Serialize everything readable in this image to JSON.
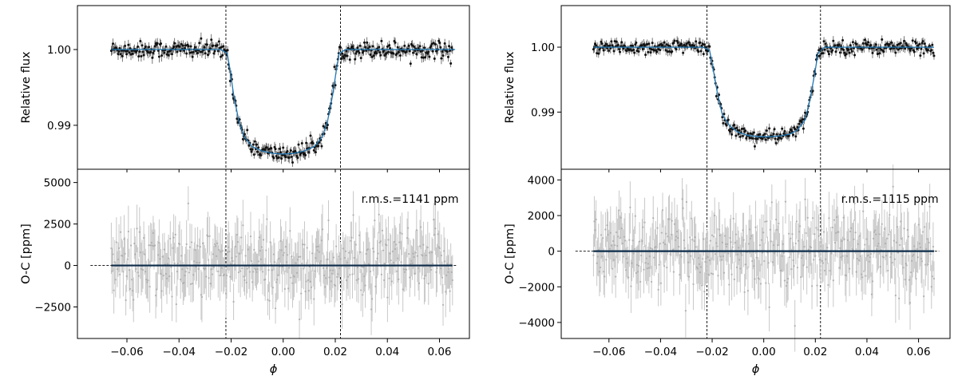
{
  "chart_data": [
    {
      "type": "scatter",
      "panel": "left",
      "top": {
        "ylabel": "Relative flux",
        "ylim": [
          0.9842,
          1.0058
        ],
        "yticks": [
          "0.99",
          "1.00"
        ],
        "model": {
          "x": [
            -0.066,
            -0.024,
            -0.0215,
            -0.0205,
            -0.019,
            -0.017,
            -0.015,
            -0.012,
            -0.008,
            -0.004,
            0.0,
            0.004,
            0.008,
            0.012,
            0.015,
            0.017,
            0.019,
            0.0205,
            0.0215,
            0.024,
            0.066
          ],
          "y": [
            1.0,
            1.0,
            0.9995,
            0.9975,
            0.994,
            0.9905,
            0.9885,
            0.9872,
            0.9866,
            0.9863,
            0.9862,
            0.9863,
            0.9866,
            0.9872,
            0.9885,
            0.9905,
            0.994,
            0.9975,
            0.9995,
            1.0,
            1.0
          ]
        },
        "depth_points": [
          {
            "x": -0.015,
            "y": 0.9868
          },
          {
            "x": -0.01,
            "y": 0.9862
          },
          {
            "x": -0.005,
            "y": 0.986
          },
          {
            "x": 0.0,
            "y": 0.9858
          },
          {
            "x": 0.005,
            "y": 0.9861
          },
          {
            "x": 0.01,
            "y": 0.9864
          },
          {
            "x": 0.015,
            "y": 0.9876
          }
        ]
      },
      "bottom": {
        "ylabel": "O-C [ppm]",
        "ylim": [
          -4400,
          5800
        ],
        "yticks": [
          "−2500",
          "0",
          "2500",
          "5000"
        ],
        "annotation": "r.m.s.=1141 ppm",
        "rms": 1141
      },
      "xlabel": "ϕ",
      "xlim": [
        -0.079,
        0.0715
      ],
      "xticks": [
        "−0.06",
        "−0.04",
        "−0.02",
        "0.00",
        "0.02",
        "0.04",
        "0.06"
      ],
      "xtick_values": [
        -0.06,
        -0.04,
        -0.02,
        0.0,
        0.02,
        0.04,
        0.06
      ],
      "ytick_values_top": [
        0.99,
        1.0
      ],
      "ytick_values_bottom": [
        -2500,
        0,
        2500,
        5000
      ],
      "ingress": -0.022,
      "egress": 0.022,
      "data_xrange": [
        -0.066,
        0.065
      ],
      "dashed_baseline_xrange": [
        -0.074,
        0.067
      ],
      "n_points": 400
    },
    {
      "type": "scatter",
      "panel": "right",
      "top": {
        "ylabel": "Relative flux",
        "ylim": [
          0.9812,
          1.0064
        ],
        "yticks": [
          "0.99",
          "1.00"
        ],
        "model": {
          "x": [
            -0.066,
            -0.0235,
            -0.021,
            -0.02,
            -0.018,
            -0.016,
            -0.013,
            -0.01,
            -0.006,
            -0.002,
            0.002,
            0.006,
            0.01,
            0.013,
            0.016,
            0.018,
            0.02,
            0.021,
            0.0235,
            0.066
          ],
          "y": [
            1.0,
            1.0,
            0.9995,
            0.9975,
            0.993,
            0.9895,
            0.9878,
            0.9869,
            0.9864,
            0.9862,
            0.9862,
            0.9863,
            0.9866,
            0.9872,
            0.9888,
            0.992,
            0.9965,
            0.999,
            1.0,
            1.0
          ]
        },
        "depth_points": [
          {
            "x": -0.015,
            "y": 0.9866
          },
          {
            "x": -0.01,
            "y": 0.9861
          },
          {
            "x": -0.005,
            "y": 0.9859
          },
          {
            "x": 0.0,
            "y": 0.9857
          },
          {
            "x": 0.005,
            "y": 0.986
          },
          {
            "x": 0.01,
            "y": 0.9865
          },
          {
            "x": 0.015,
            "y": 0.9878
          }
        ]
      },
      "bottom": {
        "ylabel": "O-C [ppm]",
        "ylim": [
          -4900,
          4600
        ],
        "yticks": [
          "−4000",
          "−2000",
          "0",
          "2000",
          "4000"
        ],
        "annotation": "r.m.s.=1115 ppm",
        "rms": 1115
      },
      "xlabel": "ϕ",
      "xlim": [
        -0.0785,
        0.0722
      ],
      "xticks": [
        "−0.06",
        "−0.04",
        "−0.02",
        "0.00",
        "0.02",
        "0.04",
        "0.06"
      ],
      "xtick_values": [
        -0.06,
        -0.04,
        -0.02,
        0.0,
        0.02,
        0.04,
        0.06
      ],
      "ytick_values_top": [
        0.99,
        1.0
      ],
      "ytick_values_bottom": [
        -4000,
        -2000,
        0,
        2000,
        4000
      ],
      "ingress": -0.022,
      "egress": 0.022,
      "data_xrange": [
        -0.066,
        0.066
      ],
      "dashed_baseline_xrange": [
        -0.073,
        0.068
      ],
      "n_points": 400
    }
  ],
  "colors": {
    "model": "#1f77b4",
    "residual_model": "#0d2d4a",
    "points": "#111111",
    "errorbars": "#555555",
    "residual_points": "#c8c8c8"
  }
}
